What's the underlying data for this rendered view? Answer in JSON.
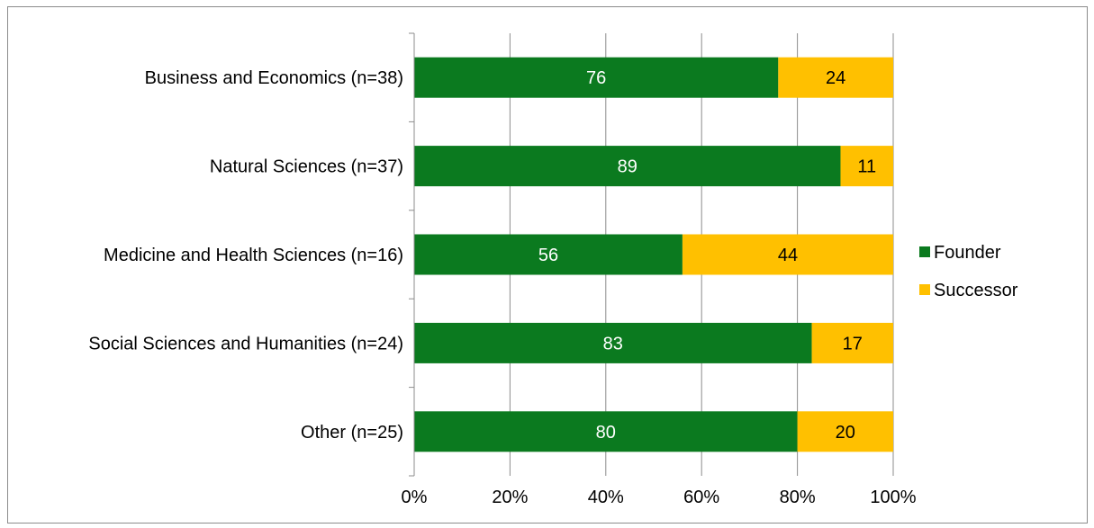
{
  "chart_data": {
    "type": "bar",
    "orientation": "horizontal",
    "stacked": true,
    "categories": [
      "Business and Economics (n=38)",
      "Natural Sciences (n=37)",
      "Medicine and Health Sciences (n=16)",
      "Social Sciences and Humanities (n=24)",
      "Other (n=25)"
    ],
    "series": [
      {
        "name": "Founder",
        "values": [
          76,
          89,
          56,
          83,
          80
        ],
        "color": "#0b7a1f",
        "label_color": "#ffffff"
      },
      {
        "name": "Successor",
        "values": [
          24,
          11,
          44,
          17,
          20
        ],
        "color": "#ffc000",
        "label_color": "#000000"
      }
    ],
    "x_ticks": [
      "0%",
      "20%",
      "40%",
      "60%",
      "80%",
      "100%"
    ],
    "xlim": [
      0,
      100
    ],
    "grid": "vertical",
    "legend": "right"
  }
}
